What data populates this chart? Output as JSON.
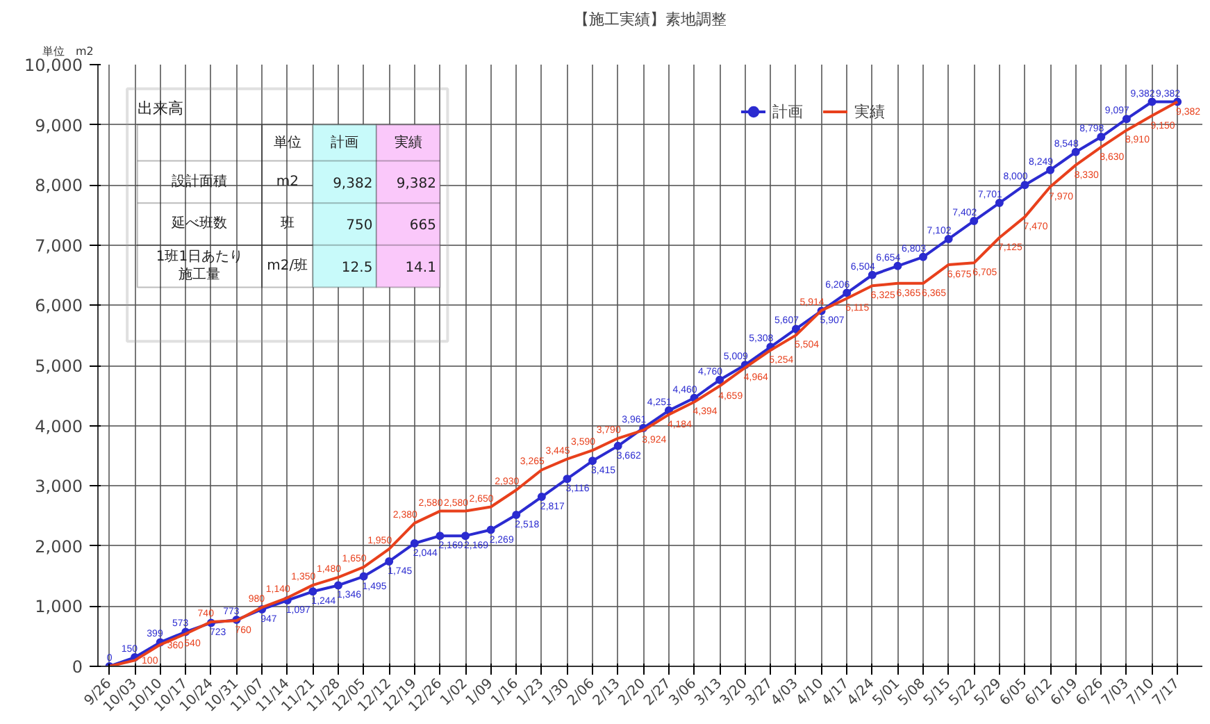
{
  "chart_data": {
    "type": "line",
    "title": "【施工実績】素地調整",
    "ylabel": "単位　m2",
    "categories": [
      "9/26",
      "10/03",
      "10/10",
      "10/17",
      "10/24",
      "10/31",
      "11/07",
      "11/14",
      "11/21",
      "11/28",
      "12/05",
      "12/12",
      "12/19",
      "12/26",
      "1/02",
      "1/09",
      "1/16",
      "1/23",
      "1/30",
      "2/06",
      "2/13",
      "2/20",
      "2/27",
      "3/06",
      "3/13",
      "3/20",
      "3/27",
      "4/03",
      "4/10",
      "4/17",
      "4/24",
      "5/01",
      "5/08",
      "5/15",
      "5/22",
      "5/29",
      "6/05",
      "6/12",
      "6/19",
      "6/26",
      "7/03",
      "7/10",
      "7/17"
    ],
    "series": [
      {
        "name": "計画",
        "color": "#2b2bd0",
        "marker": "circle",
        "values": [
          0,
          150,
          399,
          573,
          723,
          773,
          947,
          1097,
          1244,
          1346,
          1495,
          1745,
          2044,
          2169,
          2169,
          2269,
          2518,
          2817,
          3116,
          3415,
          3662,
          3961,
          4251,
          4460,
          4760,
          5009,
          5308,
          5607,
          5907,
          6206,
          6504,
          6654,
          6803,
          7102,
          7402,
          7701,
          8000,
          8249,
          8548,
          8798,
          9097,
          9382,
          9382
        ],
        "value_labels": [
          "0",
          "150",
          "399",
          "573",
          "723",
          "773",
          "947",
          "1,097",
          "1,244",
          "1,346",
          "1,495",
          "1,745",
          "2,044",
          "2,169",
          "2,169",
          "2,269",
          "2,518",
          "2,817",
          "3,116",
          "3,415",
          "3,662",
          "3,961",
          "4,251",
          "4,460",
          "4,760",
          "5,009",
          "5,308",
          "5,607",
          "5,907",
          "6,206",
          "6,504",
          "6,654",
          "6,803",
          "7,102",
          "7,402",
          "7,701",
          "8,000",
          "8,249",
          "8,548",
          "8,798",
          "9,097",
          "9,382",
          "9,382"
        ]
      },
      {
        "name": "実績",
        "color": "#e8401c",
        "marker": "none",
        "values": [
          0,
          100,
          360,
          540,
          740,
          760,
          980,
          1140,
          1350,
          1480,
          1650,
          1950,
          2380,
          2580,
          2580,
          2650,
          2930,
          3265,
          3445,
          3590,
          3790,
          3924,
          4184,
          4394,
          4659,
          4964,
          5254,
          5504,
          5914,
          6115,
          6325,
          6365,
          6365,
          6675,
          6705,
          7125,
          7470,
          7970,
          8330,
          8630,
          8910,
          9150,
          9382
        ],
        "value_labels": [
          null,
          "100",
          "360",
          "540",
          "740",
          "760",
          "980",
          "1,140",
          "1,350",
          "1,480",
          "1,650",
          "1,950",
          "2,380",
          "2,580",
          "2,580",
          "2,650",
          "2,930",
          "3,265",
          "3,445",
          "3,590",
          "3,790",
          "3,924",
          "4,184",
          "4,394",
          "4,659",
          "4,964",
          "5,254",
          "5,504",
          "5,914",
          "6,115",
          "6,325",
          "6,365",
          "6,365",
          "6,675",
          "6,705",
          "7,125",
          "7,470",
          "7,970",
          "8,330",
          "8,630",
          "8,910",
          "9,150",
          "9,382"
        ]
      }
    ],
    "ylim": [
      0,
      10000
    ],
    "yticks": [
      0,
      {
        "value": 1000,
        "label": "1,000"
      },
      {
        "value": 2000,
        "label": "2,000"
      },
      {
        "value": 3000,
        "label": "3,000"
      },
      {
        "value": 4000,
        "label": "4,000"
      },
      {
        "value": 5000,
        "label": "5,000"
      },
      {
        "value": 6000,
        "label": "6,000"
      },
      {
        "value": 7000,
        "label": "7,000"
      },
      {
        "value": 8000,
        "label": "8,000"
      },
      {
        "value": 9000,
        "label": "9,000"
      },
      {
        "value": 10000,
        "label": "10,000"
      }
    ],
    "grid": true,
    "legend": "top right",
    "line_style": "solid",
    "annotations": [
      "出来高",
      "単位",
      "計画",
      "実績",
      "設計面積",
      "m2",
      "9,382",
      "9,382",
      "延べ班数",
      "班",
      "750",
      "665",
      "1班1日あたり施工量",
      "m2/班",
      "12.5",
      "14.1"
    ]
  }
}
